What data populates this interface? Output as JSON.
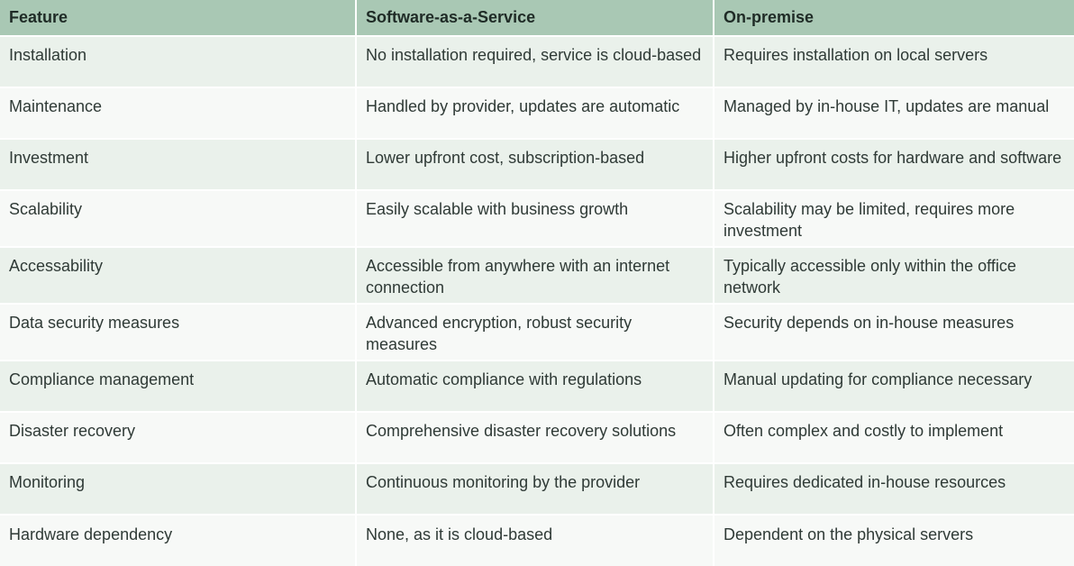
{
  "table": {
    "headers": [
      "Feature",
      "Software-as-a-Service",
      "On-premise"
    ],
    "rows": [
      [
        "Installation",
        "No installation required, service is cloud-based",
        "Requires installation on local servers"
      ],
      [
        "Maintenance",
        "Handled by provider, updates are automatic",
        "Managed by in-house IT, updates are manual"
      ],
      [
        "Investment",
        "Lower upfront cost, subscription-based",
        "Higher upfront costs for hardware and software"
      ],
      [
        "Scalability",
        "Easily scalable with business growth",
        "Scalability may be limited,  requires more investment"
      ],
      [
        "Accessability",
        "Accessible from anywhere with an internet connection",
        "Typically accessible only within the office network"
      ],
      [
        "Data security measures",
        "Advanced encryption, robust security measures",
        "Security depends on in-house measures"
      ],
      [
        "Compliance management",
        "Automatic compliance with regulations",
        "Manual updating for compliance necessary"
      ],
      [
        "Disaster recovery",
        "Comprehensive disaster recovery solutions",
        "Often complex and costly to implement"
      ],
      [
        "Monitoring",
        "Continuous monitoring by the provider",
        "Requires dedicated in-house resources"
      ],
      [
        "Hardware dependency",
        "None, as it is cloud-based",
        "Dependent on the physical servers"
      ]
    ]
  }
}
